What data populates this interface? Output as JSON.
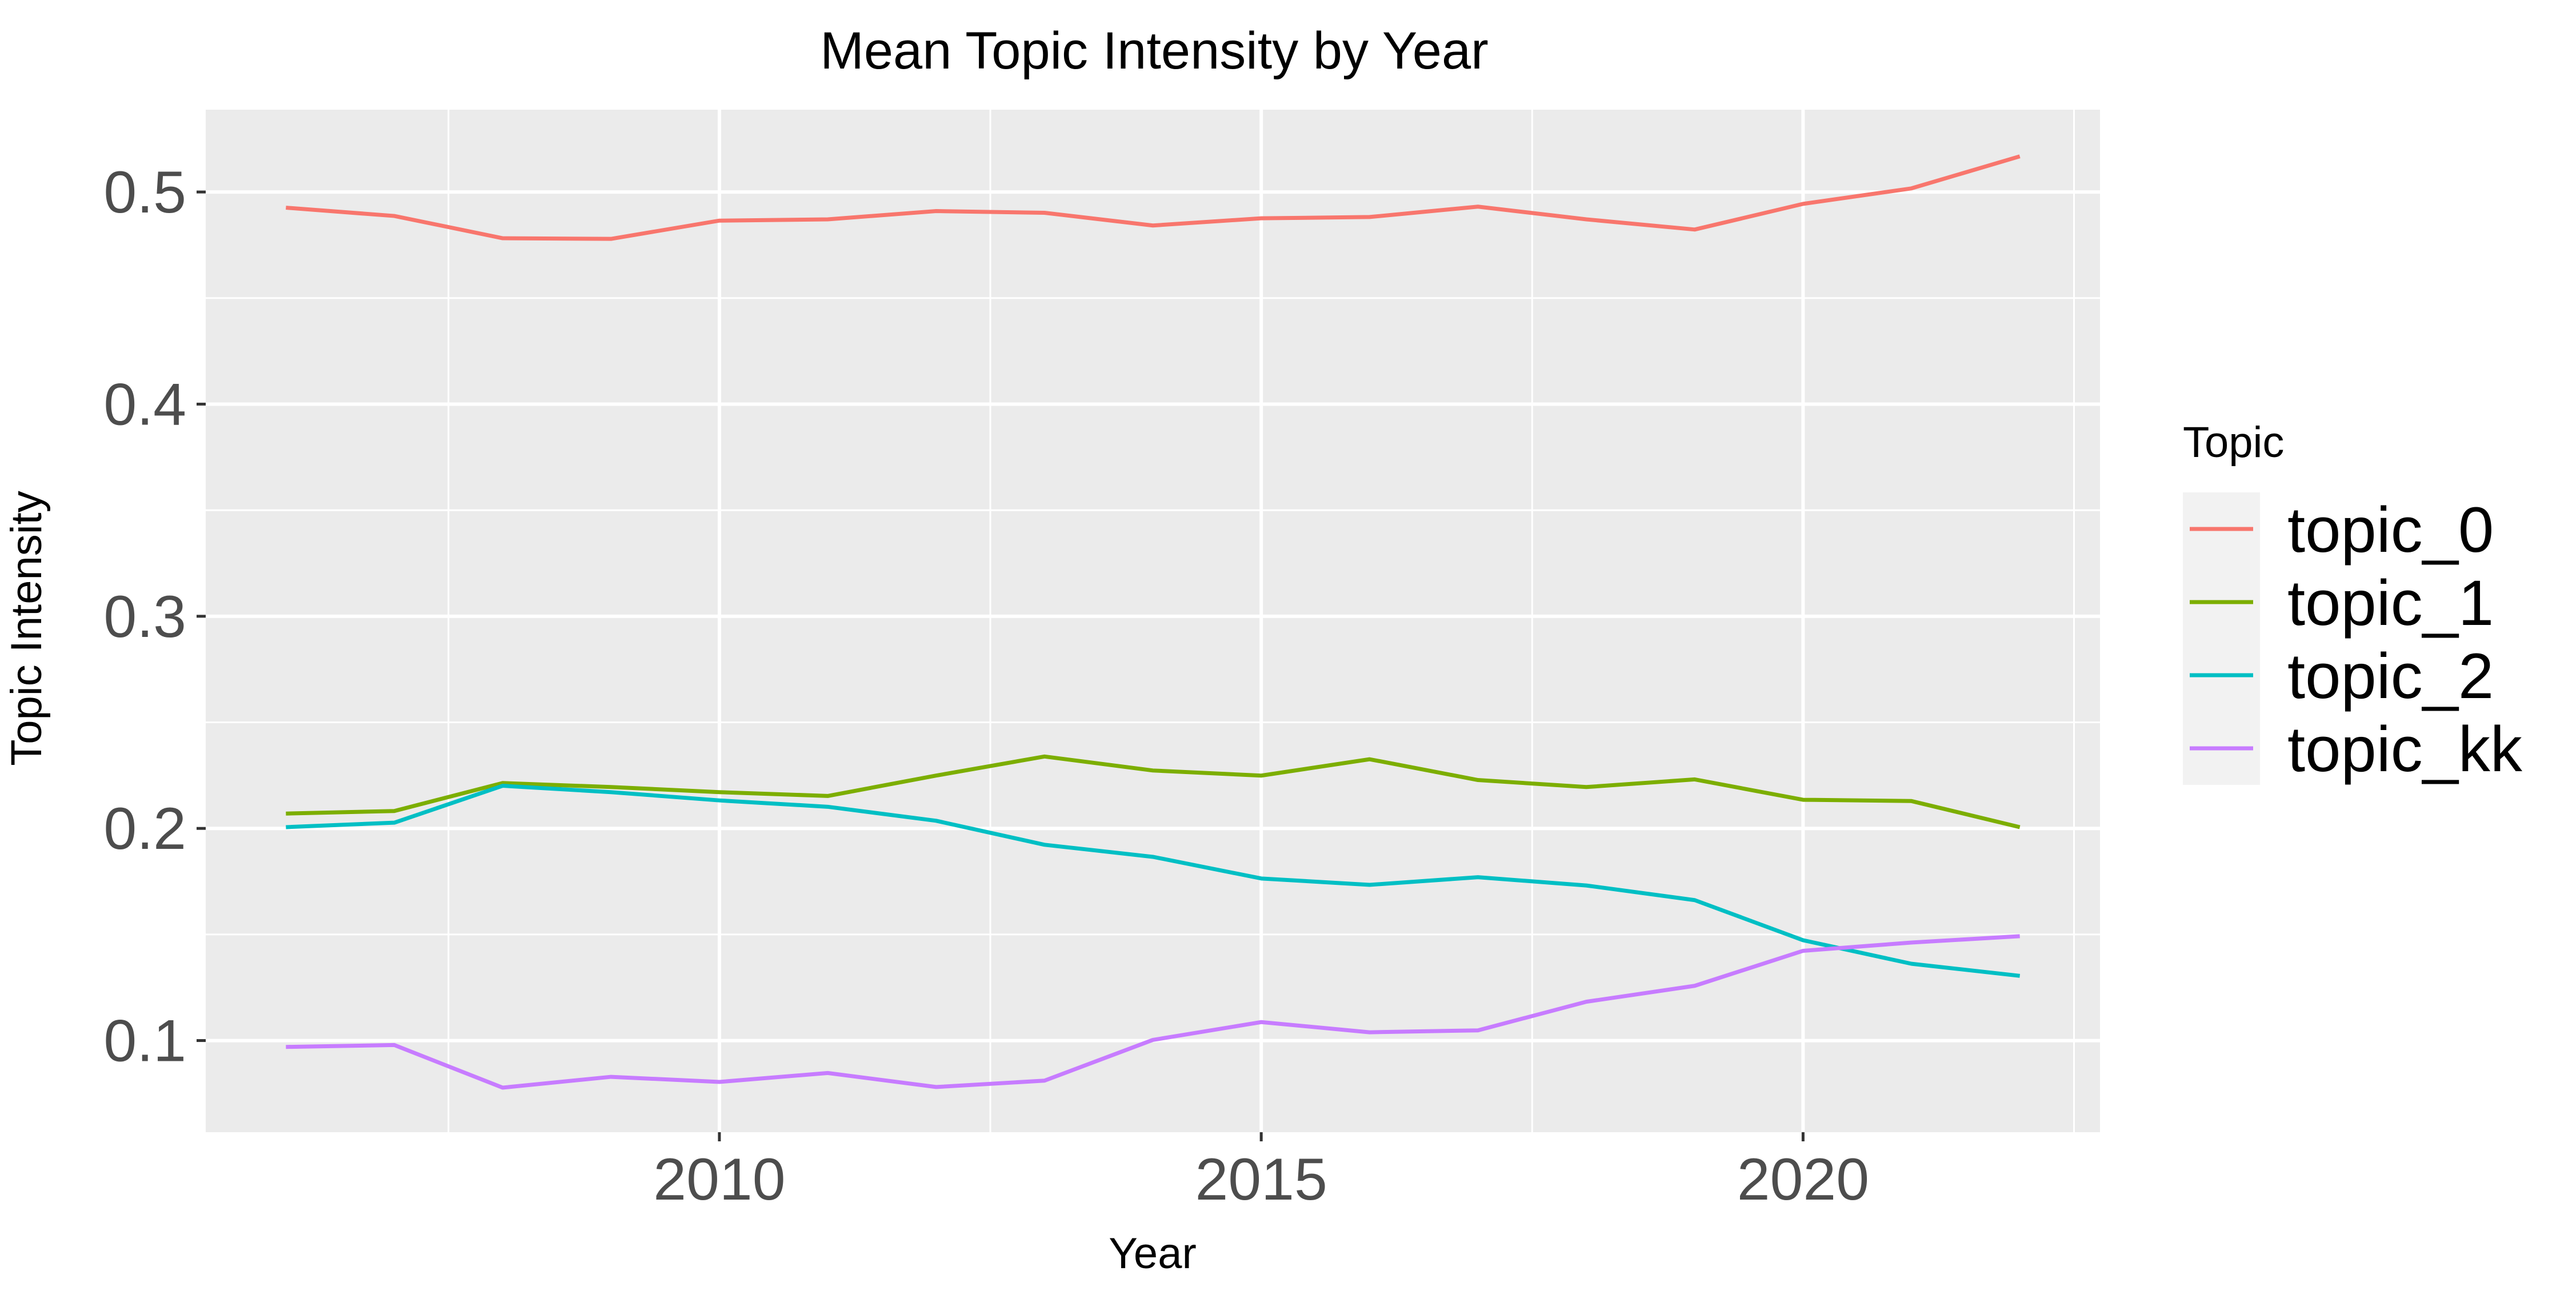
{
  "chart_data": {
    "type": "line",
    "title": "Mean Topic Intensity by Year",
    "xlabel": "Year",
    "ylabel": "Topic Intensity",
    "xlim": [
      2005.26,
      2022.74
    ],
    "ylim": [
      0.0568,
      0.5388
    ],
    "x_ticks": [
      2010,
      2015,
      2020
    ],
    "x_tick_labels": [
      "2010",
      "2015",
      "2020"
    ],
    "y_ticks": [
      0.1,
      0.2,
      0.3,
      0.4,
      0.5
    ],
    "y_tick_labels": [
      "0.1",
      "0.2",
      "0.3",
      "0.4",
      "0.5"
    ],
    "grid": true,
    "legend": {
      "title": "Topic",
      "position": "right"
    },
    "x": [
      2006,
      2007,
      2008,
      2009,
      2010,
      2011,
      2012,
      2013,
      2014,
      2015,
      2016,
      2017,
      2018,
      2019,
      2020,
      2021,
      2022
    ],
    "series": [
      {
        "name": "topic_0",
        "color": "#F8766D",
        "values": [
          0.4926,
          0.4887,
          0.4782,
          0.4779,
          0.4865,
          0.4871,
          0.491,
          0.4902,
          0.4842,
          0.4876,
          0.4882,
          0.4931,
          0.4871,
          0.4823,
          0.4944,
          0.5017,
          0.5168
        ]
      },
      {
        "name": "topic_1",
        "color": "#7CAE00",
        "values": [
          0.207,
          0.2082,
          0.2214,
          0.2195,
          0.2171,
          0.2153,
          0.2249,
          0.2339,
          0.2273,
          0.2249,
          0.2326,
          0.2228,
          0.2195,
          0.2231,
          0.2135,
          0.2129,
          0.2006
        ]
      },
      {
        "name": "topic_2",
        "color": "#00BFC4",
        "values": [
          0.2006,
          0.2027,
          0.2201,
          0.2171,
          0.2132,
          0.2102,
          0.2036,
          0.1923,
          0.1866,
          0.1764,
          0.1734,
          0.177,
          0.1731,
          0.1662,
          0.1473,
          0.1362,
          0.1305
        ]
      },
      {
        "name": "topic_kk",
        "color": "#C77CFF",
        "values": [
          0.097,
          0.0979,
          0.0778,
          0.0829,
          0.0805,
          0.0847,
          0.0781,
          0.0811,
          0.1003,
          0.1087,
          0.1039,
          0.1048,
          0.1183,
          0.1258,
          0.1423,
          0.1462,
          0.1492
        ]
      }
    ]
  }
}
